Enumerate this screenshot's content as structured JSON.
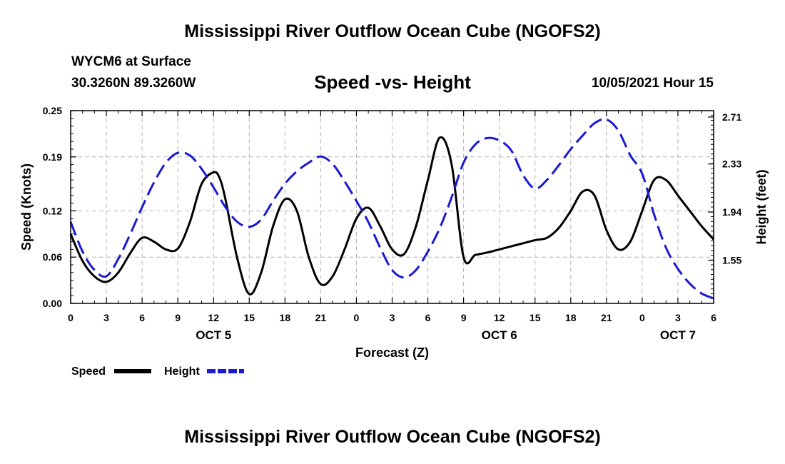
{
  "title": "Mississippi River Outflow Ocean Cube (NGOFS2)",
  "bottom_title": "Mississippi River Outflow Ocean Cube (NGOFS2)",
  "station": "WYCM6 at Surface",
  "coordinates": "30.3260N  89.3260W",
  "date_label": "10/05/2021 Hour 15",
  "legend": {
    "speed_label": "Speed",
    "height_label": "Height"
  },
  "colors": {
    "speed": "#000000",
    "height": "#1a1ad0",
    "grid": "#b4b4b4"
  },
  "chart_data": {
    "type": "line",
    "title": "Speed -vs- Height",
    "xlabel": "Forecast (Z)",
    "ylabel": "Speed (Knots)",
    "y2label": "Height (feet)",
    "xlim": [
      0,
      54
    ],
    "ylim": [
      0,
      0.25
    ],
    "y2lim": [
      1.2,
      2.762
    ],
    "x_ticks": [
      0,
      3,
      6,
      9,
      12,
      15,
      18,
      21,
      24,
      27,
      30,
      33,
      36,
      39,
      42,
      45,
      48,
      51,
      54
    ],
    "x_tick_labels": [
      "0",
      "3",
      "6",
      "9",
      "12",
      "15",
      "18",
      "21",
      "0",
      "3",
      "6",
      "9",
      "12",
      "15",
      "18",
      "21",
      "0",
      "3",
      "6"
    ],
    "day_labels": [
      {
        "x": 12,
        "label": "OCT 5"
      },
      {
        "x": 36,
        "label": "OCT 6"
      },
      {
        "x": 51,
        "label": "OCT 7"
      }
    ],
    "y_ticks": [
      0.0,
      0.06,
      0.12,
      0.19,
      0.25
    ],
    "y_tick_labels": [
      "0.00",
      "0.06",
      "0.12",
      "0.19",
      "0.25"
    ],
    "y2_ticks": [
      1.55,
      1.94,
      2.33,
      2.71
    ],
    "y2_tick_labels": [
      "1.55",
      "1.94",
      "2.33",
      "2.71"
    ],
    "grid": true,
    "series": [
      {
        "name": "Speed",
        "axis": "left",
        "style": "solid",
        "x": [
          0,
          1,
          2,
          3,
          4,
          5,
          6,
          7,
          8,
          9,
          10,
          11,
          12,
          12.5,
          13,
          14,
          15,
          16,
          17,
          18,
          19,
          20,
          21,
          22,
          23,
          24,
          25,
          26,
          27,
          28,
          29,
          30,
          31,
          32,
          33,
          34,
          35,
          36,
          37,
          38,
          39,
          40,
          41,
          42,
          43,
          44,
          45,
          46,
          47,
          48,
          49,
          50,
          51,
          52,
          53,
          54
        ],
        "y": [
          0.09,
          0.055,
          0.035,
          0.028,
          0.04,
          0.065,
          0.085,
          0.08,
          0.07,
          0.071,
          0.105,
          0.155,
          0.17,
          0.163,
          0.135,
          0.058,
          0.012,
          0.04,
          0.1,
          0.135,
          0.12,
          0.06,
          0.025,
          0.035,
          0.07,
          0.11,
          0.124,
          0.1,
          0.07,
          0.064,
          0.1,
          0.16,
          0.215,
          0.18,
          0.06,
          0.063,
          0.066,
          0.07,
          0.074,
          0.078,
          0.082,
          0.085,
          0.098,
          0.12,
          0.145,
          0.14,
          0.095,
          0.07,
          0.08,
          0.12,
          0.16,
          0.16,
          0.14,
          0.12,
          0.1,
          0.083
        ]
      },
      {
        "name": "Height",
        "axis": "right",
        "style": "dashed",
        "x": [
          0,
          1,
          2,
          3,
          4,
          5,
          6,
          7,
          8,
          9,
          10,
          11,
          12,
          13,
          14,
          15,
          16,
          17,
          18,
          19,
          20,
          21,
          22,
          23,
          24,
          25,
          26,
          27,
          28,
          29,
          30,
          31,
          32,
          33,
          34,
          35,
          36,
          37,
          38,
          39,
          40,
          41,
          42,
          43,
          44,
          45,
          46,
          47,
          48,
          49,
          50,
          51,
          52,
          53,
          54
        ],
        "y": [
          1.86,
          1.62,
          1.47,
          1.42,
          1.56,
          1.76,
          1.98,
          2.18,
          2.34,
          2.42,
          2.4,
          2.29,
          2.14,
          1.98,
          1.86,
          1.82,
          1.88,
          2.03,
          2.17,
          2.27,
          2.34,
          2.39,
          2.33,
          2.19,
          2.03,
          1.86,
          1.65,
          1.47,
          1.41,
          1.47,
          1.62,
          1.81,
          2.06,
          2.34,
          2.49,
          2.54,
          2.52,
          2.44,
          2.24,
          2.13,
          2.2,
          2.32,
          2.45,
          2.56,
          2.66,
          2.69,
          2.6,
          2.4,
          2.25,
          1.92,
          1.65,
          1.48,
          1.36,
          1.28,
          1.24
        ]
      }
    ]
  }
}
